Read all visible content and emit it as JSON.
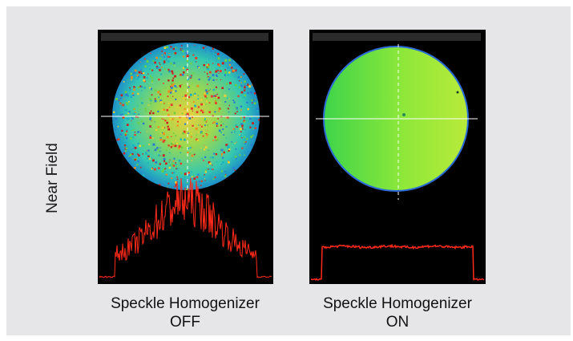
{
  "side_label": "Near Field",
  "panels": [
    {
      "id": "off",
      "caption_line1": "Speckle Homogenizer",
      "caption_line2": "OFF",
      "pattern": "speckled",
      "profile": "noisy"
    },
    {
      "id": "on",
      "caption_line1": "Speckle Homogenizer",
      "caption_line2": "ON",
      "pattern": "uniform",
      "profile": "flat-top"
    }
  ],
  "colors": {
    "background": "#e6e6e8",
    "panel": "#000000",
    "profile_line": "#ff2a1a",
    "crosshair": "#ffffff",
    "beam_uniform": "#7ee832"
  }
}
